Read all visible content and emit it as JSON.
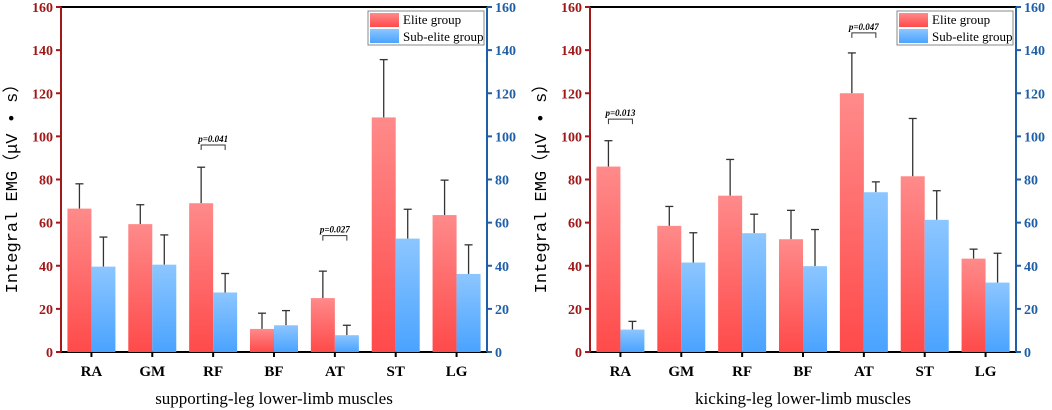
{
  "colors": {
    "elite": "#ff5a5a",
    "elite_top": "#ff8a8a",
    "sub": "#52a8ff",
    "sub_top": "#8cc6ff",
    "left_axis": "#a01818",
    "right_axis": "#1f5fa8",
    "error": "#333333"
  },
  "chart_data": [
    {
      "type": "bar",
      "title": "",
      "xlabel": "supporting-leg lower-limb muscles",
      "ylabel": "Integral EMG（μV • s）",
      "ylim": [
        0,
        160
      ],
      "yticks": [
        "0",
        "20",
        "40",
        "60",
        "80",
        "100",
        "120",
        "140",
        "160"
      ],
      "categories": [
        "RA",
        "GM",
        "RF",
        "BF",
        "AT",
        "ST",
        "LG"
      ],
      "legend_position": "top-right",
      "series": [
        {
          "name": "Elite group",
          "values": [
            66.5,
            59.3,
            69,
            10.7,
            25,
            108.8,
            63.5
          ],
          "error_upper": [
            78,
            68.3,
            85.7,
            18,
            37.5,
            135.6,
            79.7
          ]
        },
        {
          "name": "Sub-elite group",
          "values": [
            39.6,
            40.5,
            27.6,
            12.4,
            7.8,
            52.6,
            36.2
          ],
          "error_upper": [
            53.3,
            54.3,
            36.4,
            19.2,
            12.4,
            66.2,
            49.7
          ]
        }
      ],
      "annotations": [
        {
          "category": "RF",
          "text": "p=0.041",
          "y": 96
        },
        {
          "category": "AT",
          "text": "p=0.027",
          "y": 54
        }
      ]
    },
    {
      "type": "bar",
      "title": "",
      "xlabel": "kicking-leg lower-limb muscles",
      "ylabel": "Integral EMG（μV • s）",
      "ylim": [
        0,
        160
      ],
      "yticks": [
        "0",
        "20",
        "40",
        "60",
        "80",
        "100",
        "120",
        "140",
        "160"
      ],
      "categories": [
        "RA",
        "GM",
        "RF",
        "BF",
        "AT",
        "ST",
        "LG"
      ],
      "legend_position": "top-right",
      "series": [
        {
          "name": "Elite group",
          "values": [
            86,
            58.5,
            72.5,
            52.3,
            120,
            81.5,
            43.3
          ],
          "error_upper": [
            98,
            67.5,
            89.3,
            65.7,
            138.7,
            108.3,
            47.7
          ]
        },
        {
          "name": "Sub-elite group",
          "values": [
            10.4,
            41.5,
            55.1,
            39.8,
            74.1,
            61.3,
            32.2
          ],
          "error_upper": [
            14.2,
            55.3,
            63.9,
            56.8,
            78.9,
            74.8,
            45.8
          ]
        }
      ],
      "annotations": [
        {
          "category": "RA",
          "text": "p=0.013",
          "y": 108
        },
        {
          "category": "AT",
          "text": "p=0.047",
          "y": 148
        }
      ]
    }
  ]
}
